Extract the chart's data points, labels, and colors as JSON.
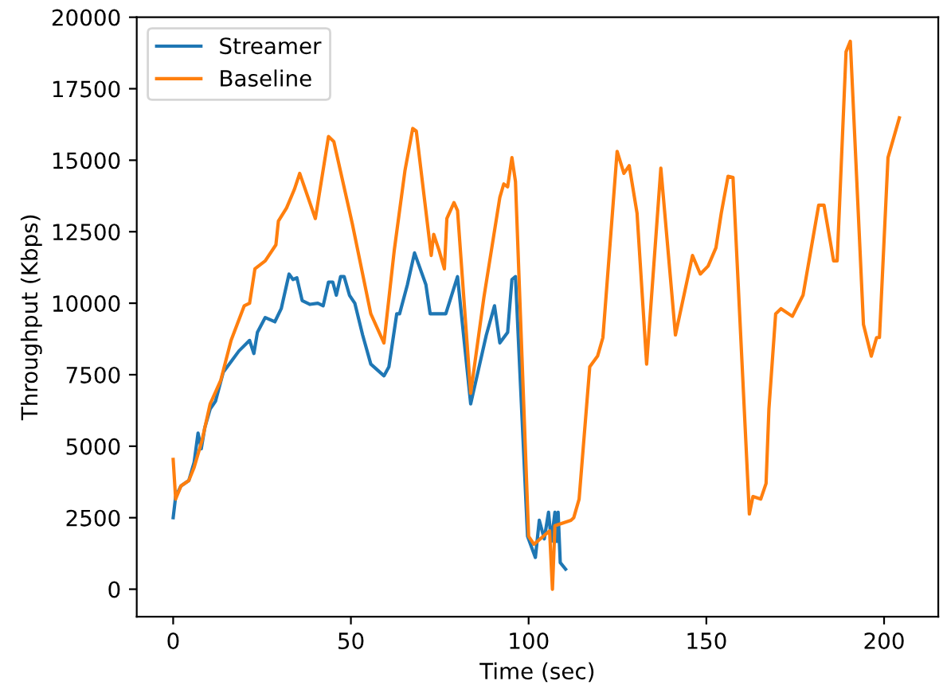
{
  "chart_data": {
    "type": "line",
    "xlabel": "Time (sec)",
    "ylabel": "Throughput (Kbps)",
    "xlim": [
      -10.25,
      215.25
    ],
    "ylim": [
      -960,
      20000
    ],
    "xticks": [
      0,
      50,
      100,
      150,
      200
    ],
    "yticks": [
      0,
      2500,
      5000,
      7500,
      10000,
      12500,
      15000,
      17500,
      20000
    ],
    "grid": false,
    "legend": "top left",
    "line_style": "solid",
    "marker": "none",
    "series": [
      {
        "name": "Streamer",
        "color": "#1f77b4",
        "x": [
          0,
          0.7,
          2.2,
          4.4,
          5.9,
          7,
          7.9,
          8.9,
          10.4,
          11.9,
          14.1,
          16.3,
          18.5,
          21.5,
          22.7,
          23.7,
          25.9,
          28.6,
          30.4,
          32.6,
          33.7,
          34.8,
          36.3,
          38.5,
          40.7,
          42.2,
          43.7,
          44.9,
          45.9,
          47.1,
          48.1,
          49.6,
          51.1,
          53.3,
          55.6,
          59.3,
          60.7,
          62.9,
          63.7,
          65.9,
          67.9,
          71.1,
          72.3,
          74.8,
          76.7,
          80,
          83.7,
          88.1,
          90.4,
          91.9,
          94.1,
          95.3,
          96.3,
          99.7,
          101.9,
          103,
          104.4,
          105.6,
          106.4,
          107.4,
          107.9,
          108.3,
          108.9,
          110.4
        ],
        "values": [
          2500,
          3240,
          3610,
          3800,
          4440,
          5460,
          4910,
          5650,
          6300,
          6570,
          7590,
          7960,
          8330,
          8700,
          8240,
          8980,
          9500,
          9350,
          9810,
          11020,
          10830,
          10890,
          10090,
          9960,
          10000,
          9910,
          10740,
          10740,
          10280,
          10930,
          10930,
          10280,
          10000,
          8890,
          7870,
          7460,
          7780,
          9630,
          9630,
          10650,
          11760,
          10650,
          9630,
          9630,
          9630,
          10930,
          6480,
          8890,
          9910,
          8610,
          8980,
          10830,
          10930,
          1850,
          1110,
          2410,
          1760,
          2690,
          1670,
          2690,
          1670,
          2690,
          930,
          700
        ]
      },
      {
        "name": "Baseline",
        "color": "#ff7f0e",
        "x": [
          0,
          0.7,
          2.2,
          4.4,
          5.9,
          8.1,
          10.4,
          11.1,
          13.4,
          16.3,
          20,
          21.5,
          23,
          25.9,
          28.9,
          29.6,
          31.9,
          34.1,
          35.6,
          40,
          43.7,
          45.2,
          50.4,
          55.6,
          59.3,
          62.2,
          65.2,
          67.4,
          68.4,
          72.6,
          73.3,
          74.8,
          76.3,
          77,
          79,
          80,
          83.7,
          87.4,
          91.9,
          93,
          94.1,
          95.3,
          96.3,
          100,
          101.5,
          105.9,
          106.7,
          107.4,
          111.9,
          112.7,
          114.2,
          117.2,
          119.4,
          120.9,
          124.9,
          126.8,
          128.3,
          130.5,
          133.2,
          137.2,
          141.3,
          146.1,
          148.3,
          150.5,
          152.7,
          154.2,
          156.1,
          157.5,
          162.1,
          163.1,
          165.3,
          166.8,
          167.6,
          169.5,
          171,
          174.2,
          177.2,
          181.6,
          183.1,
          185.8,
          186.8,
          189.3,
          190.5,
          194.2,
          196.4,
          197.9,
          198.7,
          201.1,
          204.3
        ],
        "values": [
          4540,
          3150,
          3610,
          3800,
          4260,
          5190,
          6480,
          6670,
          7310,
          8700,
          9910,
          10000,
          11200,
          11480,
          12040,
          12870,
          13330,
          13980,
          14540,
          12960,
          15830,
          15650,
          12780,
          9630,
          8610,
          11850,
          14630,
          16110,
          16020,
          11670,
          12410,
          11850,
          11200,
          12960,
          13520,
          13240,
          6850,
          10190,
          13700,
          14170,
          14070,
          15090,
          14260,
          1850,
          1570,
          2040,
          0,
          2220,
          2410,
          2500,
          3150,
          7780,
          8150,
          8800,
          15310,
          14540,
          14810,
          13150,
          7870,
          14720,
          8890,
          11670,
          11020,
          11300,
          11940,
          13150,
          14440,
          14400,
          2630,
          3240,
          3150,
          3700,
          6300,
          9630,
          9810,
          9540,
          10280,
          13430,
          13430,
          11480,
          11480,
          18790,
          19160,
          9260,
          8150,
          8800,
          8800,
          15090,
          16480
        ]
      }
    ]
  }
}
